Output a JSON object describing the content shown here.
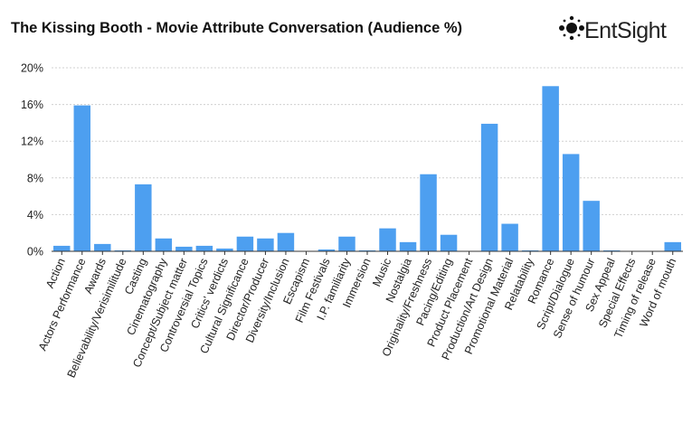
{
  "brand": {
    "name": "EntSight",
    "logo_icon": "dot-cluster-logo-icon"
  },
  "colors": {
    "bar": "#4d9ff0",
    "grid": "#d0d0d0",
    "axis": "#333333",
    "text": "#222222"
  },
  "chart_data": {
    "type": "bar",
    "title": "The Kissing Booth - Movie Attribute Conversation (Audience %)",
    "xlabel": "",
    "ylabel": "",
    "ylim": [
      0,
      20
    ],
    "yticks": [
      "0%",
      "4%",
      "8%",
      "12%",
      "16%",
      "20%"
    ],
    "grid": true,
    "categories": [
      "Action",
      "Actors Performance",
      "Awards",
      "Believability/Verisimilitude",
      "Casting",
      "Cinematography",
      "Concept/Subject matter",
      "Controversial Topics",
      "Critics' verdicts",
      "Cultural Significance",
      "Director/Producer",
      "Diversity/Inclusion",
      "Escapism",
      "Film Festivals",
      "I.P. familiarity",
      "Immersion",
      "Music",
      "Nostalgia",
      "Originality/Freshness",
      "Pacing/Editing",
      "Product Placement",
      "Production/Art Design",
      "Promotional Material",
      "Relatability",
      "Romance",
      "Script/Dialogue",
      "Sense of humour",
      "Sex Appeal",
      "Special Effects",
      "Timing of release",
      "Word of mouth"
    ],
    "values": [
      0.6,
      15.9,
      0.8,
      0.1,
      7.3,
      1.4,
      0.5,
      0.6,
      0.3,
      1.6,
      1.4,
      2.0,
      0.0,
      0.2,
      1.6,
      0.1,
      2.5,
      1.0,
      8.4,
      1.8,
      0.0,
      13.9,
      3.0,
      0.1,
      18.0,
      10.6,
      5.5,
      0.1,
      0.0,
      0.0,
      1.0
    ]
  }
}
